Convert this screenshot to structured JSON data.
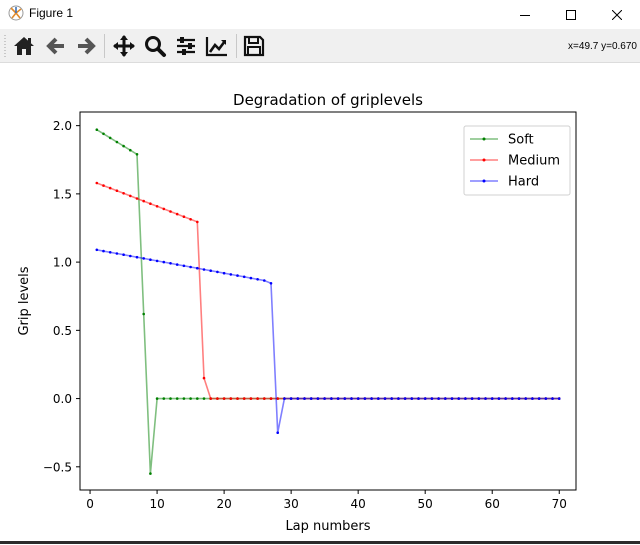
{
  "window": {
    "title": "Figure 1"
  },
  "toolbar": {
    "buttons": [
      {
        "name": "home-button",
        "icon": "home-icon"
      },
      {
        "name": "back-button",
        "icon": "arrow-left-icon"
      },
      {
        "name": "forward-button",
        "icon": "arrow-right-icon"
      },
      {
        "name": "pan-button",
        "icon": "move-icon"
      },
      {
        "name": "zoom-button",
        "icon": "magnifier-icon"
      },
      {
        "name": "configure-subplots-button",
        "icon": "sliders-icon"
      },
      {
        "name": "edit-axis-button",
        "icon": "chart-edit-icon"
      },
      {
        "name": "save-button",
        "icon": "floppy-disk-icon"
      }
    ],
    "coords": "x=49.7 y=0.670"
  },
  "chart_data": {
    "type": "line",
    "title": "Degradation of griplevels",
    "xlabel": "Lap numbers",
    "ylabel": "Grip levels",
    "xlim": [
      -1.5,
      72.5
    ],
    "ylim": [
      -0.67,
      2.1
    ],
    "xticks": [
      0,
      10,
      20,
      30,
      40,
      50,
      60,
      70
    ],
    "yticks": [
      -0.5,
      0.0,
      0.5,
      1.0,
      1.5,
      2.0
    ],
    "xtick_labels": [
      "0",
      "10",
      "20",
      "30",
      "40",
      "50",
      "60",
      "70"
    ],
    "ytick_labels": [
      "−0.5",
      "0.0",
      "0.5",
      "1.0",
      "1.5",
      "2.0"
    ],
    "legend_position": "top-right",
    "series": [
      {
        "name": "Soft",
        "color": "#008000",
        "x": [
          1,
          2,
          3,
          4,
          5,
          6,
          7,
          8,
          9,
          10,
          11,
          12,
          13,
          14,
          15,
          16,
          17,
          18,
          19,
          20,
          21,
          22,
          23,
          24,
          25,
          26,
          27,
          28,
          29,
          30,
          31,
          32,
          33,
          34,
          35,
          36,
          37,
          38,
          39,
          40,
          41,
          42,
          43,
          44,
          45,
          46,
          47,
          48,
          49,
          50,
          51,
          52,
          53,
          54,
          55,
          56,
          57,
          58,
          59,
          60,
          61,
          62,
          63,
          64,
          65,
          66,
          67,
          68,
          69,
          70
        ],
        "y": [
          1.97,
          1.94,
          1.91,
          1.88,
          1.85,
          1.82,
          1.79,
          0.62,
          -0.55,
          0,
          0,
          0,
          0,
          0,
          0,
          0,
          0,
          0,
          0,
          0,
          0,
          0,
          0,
          0,
          0,
          0,
          0,
          0,
          0,
          0,
          0,
          0,
          0,
          0,
          0,
          0,
          0,
          0,
          0,
          0,
          0,
          0,
          0,
          0,
          0,
          0,
          0,
          0,
          0,
          0,
          0,
          0,
          0,
          0,
          0,
          0,
          0,
          0,
          0,
          0,
          0,
          0,
          0,
          0,
          0,
          0,
          0,
          0,
          0,
          0
        ]
      },
      {
        "name": "Medium",
        "color": "#ff0000",
        "x": [
          1,
          2,
          3,
          4,
          5,
          6,
          7,
          8,
          9,
          10,
          11,
          12,
          13,
          14,
          15,
          16,
          17,
          18,
          19,
          20,
          21,
          22,
          23,
          24,
          25,
          26,
          27,
          28,
          29,
          30,
          31,
          32,
          33,
          34,
          35,
          36,
          37,
          38,
          39,
          40,
          41,
          42,
          43,
          44,
          45,
          46,
          47,
          48,
          49,
          50,
          51,
          52,
          53,
          54,
          55,
          56,
          57,
          58,
          59,
          60,
          61,
          62,
          63,
          64,
          65,
          66,
          67,
          68,
          69,
          70
        ],
        "y": [
          1.58,
          1.561,
          1.542,
          1.523,
          1.504,
          1.485,
          1.466,
          1.447,
          1.428,
          1.409,
          1.39,
          1.371,
          1.352,
          1.333,
          1.314,
          1.295,
          0.15,
          0,
          0,
          0,
          0,
          0,
          0,
          0,
          0,
          0,
          0,
          0,
          0,
          0,
          0,
          0,
          0,
          0,
          0,
          0,
          0,
          0,
          0,
          0,
          0,
          0,
          0,
          0,
          0,
          0,
          0,
          0,
          0,
          0,
          0,
          0,
          0,
          0,
          0,
          0,
          0,
          0,
          0,
          0,
          0,
          0,
          0,
          0,
          0,
          0,
          0,
          0,
          0,
          0
        ]
      },
      {
        "name": "Hard",
        "color": "#0000ff",
        "x": [
          1,
          2,
          3,
          4,
          5,
          6,
          7,
          8,
          9,
          10,
          11,
          12,
          13,
          14,
          15,
          16,
          17,
          18,
          19,
          20,
          21,
          22,
          23,
          24,
          25,
          26,
          27,
          28,
          29,
          30,
          31,
          32,
          33,
          34,
          35,
          36,
          37,
          38,
          39,
          40,
          41,
          42,
          43,
          44,
          45,
          46,
          47,
          48,
          49,
          50,
          51,
          52,
          53,
          54,
          55,
          56,
          57,
          58,
          59,
          60,
          61,
          62,
          63,
          64,
          65,
          66,
          67,
          68,
          69,
          70
        ],
        "y": [
          1.09,
          1.081,
          1.072,
          1.063,
          1.054,
          1.045,
          1.036,
          1.027,
          1.018,
          1.009,
          1.0,
          0.991,
          0.982,
          0.973,
          0.964,
          0.955,
          0.946,
          0.937,
          0.928,
          0.919,
          0.91,
          0.901,
          0.892,
          0.883,
          0.874,
          0.865,
          0.845,
          -0.25,
          0,
          0,
          0,
          0,
          0,
          0,
          0,
          0,
          0,
          0,
          0,
          0,
          0,
          0,
          0,
          0,
          0,
          0,
          0,
          0,
          0,
          0,
          0,
          0,
          0,
          0,
          0,
          0,
          0,
          0,
          0,
          0,
          0,
          0,
          0,
          0,
          0,
          0,
          0,
          0,
          0,
          0
        ]
      }
    ]
  }
}
